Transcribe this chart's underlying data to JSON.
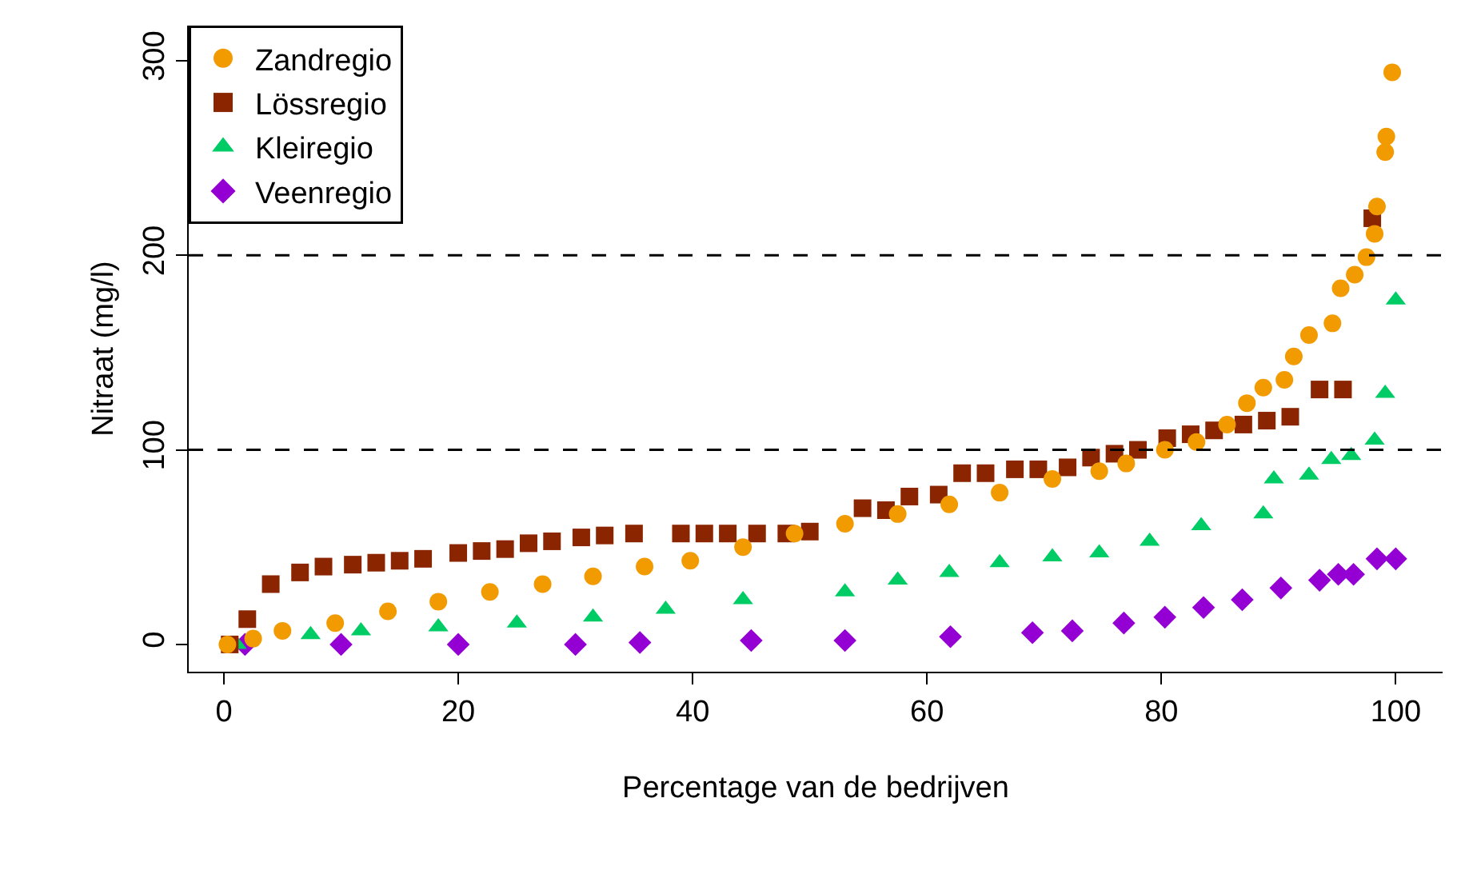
{
  "chart_data": {
    "type": "scatter",
    "xlabel": "Percentage van de bedrijven",
    "ylabel": "Nitraat (mg/l)",
    "xlim": [
      -3,
      104
    ],
    "ylim": [
      -14,
      318
    ],
    "xticks": [
      0,
      20,
      40,
      60,
      80,
      100
    ],
    "yticks": [
      0,
      100,
      200,
      300
    ],
    "legend": "top left",
    "ref_lines": [
      {
        "axis": "y",
        "value": 100,
        "color": "#000000",
        "line_style": "dashed"
      },
      {
        "axis": "y",
        "value": 200,
        "color": "#000000",
        "line_style": "dashed"
      }
    ],
    "series": [
      {
        "name": "Zandregio",
        "color": "#f29b00",
        "marker": "circle",
        "x": [
          0.3,
          2.5,
          5,
          9.5,
          14,
          18.3,
          22.7,
          27.2,
          31.5,
          35.9,
          39.8,
          44.3,
          48.7,
          53,
          57.5,
          61.9,
          66.2,
          70.7,
          74.7,
          77,
          80.3,
          83,
          85.6,
          87.3,
          88.7,
          90.5,
          91.3,
          92.6,
          94.6,
          95.3,
          96.5,
          97.5,
          98.2,
          98.4,
          99.1,
          99.2,
          99.7
        ],
        "values": [
          0,
          3,
          7,
          11,
          17,
          22,
          27,
          31,
          35,
          40,
          43,
          50,
          57,
          62,
          67,
          72,
          78,
          85,
          89,
          93,
          100,
          104,
          113,
          124,
          132,
          136,
          148,
          159,
          165,
          183,
          190,
          199,
          211,
          225,
          253,
          261,
          294
        ]
      },
      {
        "name": "Lössregio",
        "color": "#8b2500",
        "marker": "square",
        "x": [
          0.5,
          2,
          4,
          6.5,
          8.5,
          11,
          13,
          15,
          17,
          20,
          22,
          24,
          26,
          28,
          30.5,
          32.5,
          35,
          39,
          41,
          43,
          45.5,
          48,
          50,
          54.5,
          56.5,
          58.5,
          61,
          63,
          65,
          67.5,
          69.5,
          72,
          74,
          76,
          78,
          80.5,
          82.5,
          84.5,
          87,
          89,
          91,
          93.5,
          95.5,
          98
        ],
        "values": [
          0,
          13,
          31,
          37,
          40,
          41,
          42,
          43,
          44,
          47,
          48,
          49,
          52,
          53,
          55,
          56,
          57,
          57,
          57,
          57,
          57,
          57,
          58,
          70,
          69,
          76,
          77,
          88,
          88,
          90,
          90,
          91,
          96,
          98,
          100,
          106,
          108,
          110,
          113,
          115,
          117,
          131,
          131,
          219
        ]
      },
      {
        "name": "Kleiregio",
        "color": "#00cc66",
        "marker": "triangle",
        "x": [
          1.1,
          7.4,
          11.7,
          18.3,
          25,
          31.5,
          37.7,
          44.3,
          53,
          57.5,
          61.9,
          66.2,
          70.7,
          74.7,
          79,
          83.4,
          88.7,
          89.6,
          92.6,
          94.5,
          96.2,
          98.2,
          99.1,
          100
        ],
        "values": [
          0,
          5,
          7,
          9,
          11,
          14,
          18,
          23,
          27,
          33,
          37,
          42,
          45,
          47,
          53,
          61,
          67,
          85,
          87,
          95,
          97,
          105,
          129,
          177
        ]
      },
      {
        "name": "Veenregio",
        "color": "#9400d3",
        "marker": "diamond",
        "x": [
          1.8,
          10,
          20,
          30,
          35.5,
          45,
          53,
          62,
          69,
          72.4,
          76.8,
          80.3,
          83.6,
          86.9,
          90.2,
          93.5,
          95.1,
          96.4,
          98.4,
          100
        ],
        "values": [
          0,
          0,
          0,
          0,
          1,
          2,
          2,
          4,
          6,
          7,
          11,
          14,
          19,
          23,
          29,
          33,
          36,
          36,
          44,
          44
        ]
      }
    ]
  }
}
